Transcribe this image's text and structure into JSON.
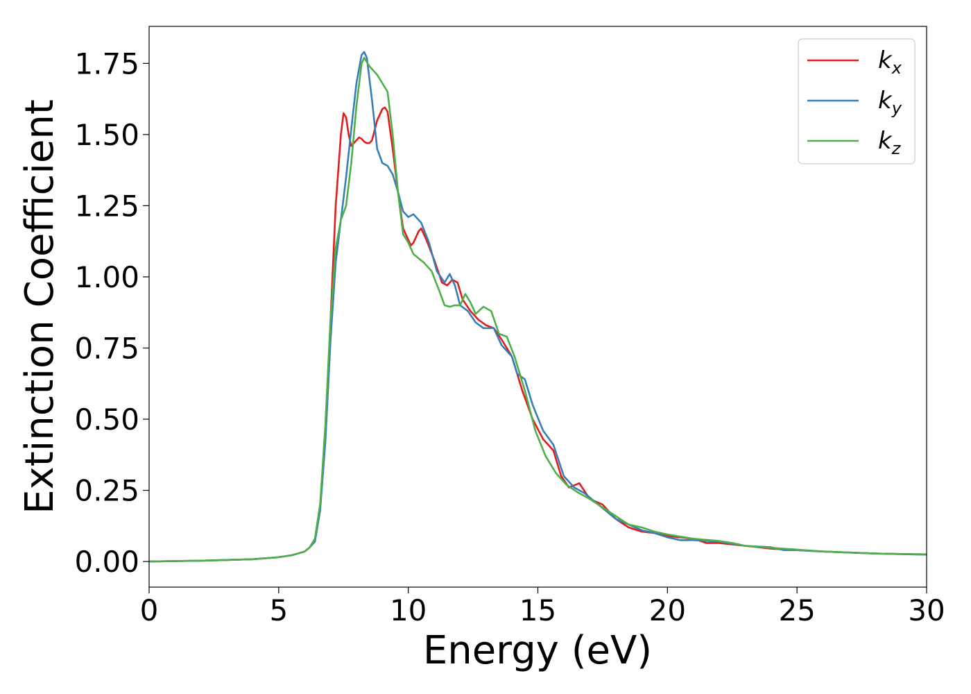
{
  "chart_data": {
    "type": "line",
    "title": "",
    "xlabel": "Energy (eV)",
    "ylabel": "Extinction Coefficient",
    "xlim": [
      0,
      30
    ],
    "ylim": [
      -0.09,
      1.88
    ],
    "xticks": [
      0,
      5,
      10,
      15,
      20,
      25,
      30
    ],
    "yticks": [
      0.0,
      0.25,
      0.5,
      0.75,
      1.0,
      1.25,
      1.5,
      1.75
    ],
    "xtick_labels": [
      "0",
      "5",
      "10",
      "15",
      "20",
      "25",
      "30"
    ],
    "ytick_labels": [
      "0.00",
      "0.25",
      "0.50",
      "0.75",
      "1.00",
      "1.25",
      "1.50",
      "1.75"
    ],
    "grid": false,
    "legend": {
      "position": "top-right"
    },
    "series": [
      {
        "name": "k_x",
        "label_main": "k",
        "label_sub": "x",
        "color": "#e41a1c",
        "points": [
          [
            0,
            0.0
          ],
          [
            2,
            0.003
          ],
          [
            4,
            0.008
          ],
          [
            5,
            0.015
          ],
          [
            5.5,
            0.022
          ],
          [
            6,
            0.035
          ],
          [
            6.2,
            0.05
          ],
          [
            6.4,
            0.08
          ],
          [
            6.6,
            0.2
          ],
          [
            6.8,
            0.45
          ],
          [
            7.0,
            0.85
          ],
          [
            7.2,
            1.25
          ],
          [
            7.4,
            1.5
          ],
          [
            7.5,
            1.575
          ],
          [
            7.6,
            1.56
          ],
          [
            7.7,
            1.5
          ],
          [
            7.8,
            1.46
          ],
          [
            7.9,
            1.47
          ],
          [
            8.0,
            1.48
          ],
          [
            8.1,
            1.49
          ],
          [
            8.2,
            1.485
          ],
          [
            8.3,
            1.475
          ],
          [
            8.4,
            1.47
          ],
          [
            8.5,
            1.47
          ],
          [
            8.6,
            1.48
          ],
          [
            8.8,
            1.55
          ],
          [
            9.0,
            1.59
          ],
          [
            9.1,
            1.595
          ],
          [
            9.2,
            1.58
          ],
          [
            9.4,
            1.45
          ],
          [
            9.6,
            1.3
          ],
          [
            9.8,
            1.17
          ],
          [
            10.0,
            1.13
          ],
          [
            10.1,
            1.11
          ],
          [
            10.2,
            1.12
          ],
          [
            10.4,
            1.16
          ],
          [
            10.5,
            1.17
          ],
          [
            10.7,
            1.13
          ],
          [
            11.0,
            1.06
          ],
          [
            11.3,
            0.98
          ],
          [
            11.5,
            0.97
          ],
          [
            11.7,
            0.99
          ],
          [
            11.9,
            0.98
          ],
          [
            12.1,
            0.92
          ],
          [
            12.4,
            0.88
          ],
          [
            12.7,
            0.85
          ],
          [
            13.0,
            0.83
          ],
          [
            13.3,
            0.82
          ],
          [
            13.6,
            0.78
          ],
          [
            14.0,
            0.72
          ],
          [
            14.4,
            0.6
          ],
          [
            14.8,
            0.5
          ],
          [
            15.2,
            0.43
          ],
          [
            15.6,
            0.39
          ],
          [
            15.9,
            0.3
          ],
          [
            16.2,
            0.26
          ],
          [
            16.6,
            0.275
          ],
          [
            17.0,
            0.22
          ],
          [
            17.5,
            0.2
          ],
          [
            18.0,
            0.15
          ],
          [
            18.5,
            0.12
          ],
          [
            19.0,
            0.105
          ],
          [
            19.5,
            0.1
          ],
          [
            20.0,
            0.09
          ],
          [
            21.0,
            0.08
          ],
          [
            21.5,
            0.065
          ],
          [
            22.0,
            0.065
          ],
          [
            23.0,
            0.055
          ],
          [
            24.0,
            0.045
          ],
          [
            25.0,
            0.04
          ],
          [
            26.0,
            0.035
          ],
          [
            28.0,
            0.028
          ],
          [
            30.0,
            0.025
          ]
        ]
      },
      {
        "name": "k_y",
        "label_main": "k",
        "label_sub": "y",
        "color": "#377eb8",
        "points": [
          [
            0,
            0.0
          ],
          [
            2,
            0.003
          ],
          [
            4,
            0.008
          ],
          [
            5,
            0.015
          ],
          [
            5.5,
            0.022
          ],
          [
            6,
            0.035
          ],
          [
            6.2,
            0.05
          ],
          [
            6.4,
            0.07
          ],
          [
            6.6,
            0.18
          ],
          [
            6.8,
            0.42
          ],
          [
            7.0,
            0.78
          ],
          [
            7.2,
            1.05
          ],
          [
            7.4,
            1.2
          ],
          [
            7.6,
            1.35
          ],
          [
            7.8,
            1.52
          ],
          [
            8.0,
            1.68
          ],
          [
            8.2,
            1.78
          ],
          [
            8.3,
            1.79
          ],
          [
            8.4,
            1.77
          ],
          [
            8.6,
            1.62
          ],
          [
            8.8,
            1.45
          ],
          [
            9.0,
            1.4
          ],
          [
            9.2,
            1.39
          ],
          [
            9.4,
            1.36
          ],
          [
            9.6,
            1.3
          ],
          [
            9.8,
            1.23
          ],
          [
            10.0,
            1.21
          ],
          [
            10.2,
            1.22
          ],
          [
            10.5,
            1.19
          ],
          [
            10.8,
            1.12
          ],
          [
            11.1,
            1.02
          ],
          [
            11.4,
            0.98
          ],
          [
            11.6,
            1.01
          ],
          [
            11.8,
            0.97
          ],
          [
            12.0,
            0.9
          ],
          [
            12.3,
            0.88
          ],
          [
            12.6,
            0.84
          ],
          [
            12.9,
            0.82
          ],
          [
            13.3,
            0.82
          ],
          [
            13.6,
            0.76
          ],
          [
            14.0,
            0.72
          ],
          [
            14.2,
            0.66
          ],
          [
            14.5,
            0.64
          ],
          [
            14.8,
            0.55
          ],
          [
            15.2,
            0.46
          ],
          [
            15.6,
            0.41
          ],
          [
            16.0,
            0.3
          ],
          [
            16.4,
            0.26
          ],
          [
            16.8,
            0.24
          ],
          [
            17.2,
            0.21
          ],
          [
            17.6,
            0.18
          ],
          [
            18.0,
            0.15
          ],
          [
            18.5,
            0.13
          ],
          [
            19.0,
            0.11
          ],
          [
            19.5,
            0.1
          ],
          [
            20.0,
            0.085
          ],
          [
            20.5,
            0.075
          ],
          [
            21.0,
            0.075
          ],
          [
            22.0,
            0.07
          ],
          [
            23.0,
            0.055
          ],
          [
            24.0,
            0.05
          ],
          [
            24.5,
            0.04
          ],
          [
            25.0,
            0.04
          ],
          [
            26.0,
            0.035
          ],
          [
            28.0,
            0.028
          ],
          [
            30.0,
            0.024
          ]
        ]
      },
      {
        "name": "k_z",
        "label_main": "k",
        "label_sub": "z",
        "color": "#4daf4a",
        "points": [
          [
            0,
            0.0
          ],
          [
            2,
            0.003
          ],
          [
            4,
            0.008
          ],
          [
            5,
            0.015
          ],
          [
            5.5,
            0.022
          ],
          [
            6,
            0.035
          ],
          [
            6.2,
            0.05
          ],
          [
            6.4,
            0.08
          ],
          [
            6.6,
            0.2
          ],
          [
            6.8,
            0.48
          ],
          [
            7.0,
            0.85
          ],
          [
            7.2,
            1.1
          ],
          [
            7.4,
            1.2
          ],
          [
            7.6,
            1.25
          ],
          [
            7.8,
            1.4
          ],
          [
            8.0,
            1.6
          ],
          [
            8.2,
            1.75
          ],
          [
            8.3,
            1.77
          ],
          [
            8.5,
            1.74
          ],
          [
            8.8,
            1.71
          ],
          [
            9.0,
            1.68
          ],
          [
            9.2,
            1.65
          ],
          [
            9.4,
            1.5
          ],
          [
            9.6,
            1.3
          ],
          [
            9.8,
            1.15
          ],
          [
            10.0,
            1.12
          ],
          [
            10.2,
            1.08
          ],
          [
            10.6,
            1.05
          ],
          [
            10.9,
            1.02
          ],
          [
            11.2,
            0.95
          ],
          [
            11.4,
            0.9
          ],
          [
            11.6,
            0.895
          ],
          [
            11.8,
            0.9
          ],
          [
            12.0,
            0.9
          ],
          [
            12.2,
            0.94
          ],
          [
            12.4,
            0.91
          ],
          [
            12.6,
            0.87
          ],
          [
            12.9,
            0.895
          ],
          [
            13.2,
            0.88
          ],
          [
            13.5,
            0.8
          ],
          [
            13.8,
            0.79
          ],
          [
            14.1,
            0.72
          ],
          [
            14.5,
            0.6
          ],
          [
            14.9,
            0.46
          ],
          [
            15.3,
            0.37
          ],
          [
            15.7,
            0.31
          ],
          [
            16.1,
            0.27
          ],
          [
            16.5,
            0.245
          ],
          [
            17.0,
            0.22
          ],
          [
            17.5,
            0.19
          ],
          [
            18.0,
            0.16
          ],
          [
            18.5,
            0.13
          ],
          [
            19.0,
            0.12
          ],
          [
            19.5,
            0.105
          ],
          [
            20.0,
            0.095
          ],
          [
            21.0,
            0.08
          ],
          [
            22.0,
            0.072
          ],
          [
            22.5,
            0.065
          ],
          [
            23.0,
            0.055
          ],
          [
            24.0,
            0.048
          ],
          [
            25.0,
            0.042
          ],
          [
            26.0,
            0.035
          ],
          [
            28.0,
            0.028
          ],
          [
            30.0,
            0.024
          ]
        ]
      }
    ]
  }
}
